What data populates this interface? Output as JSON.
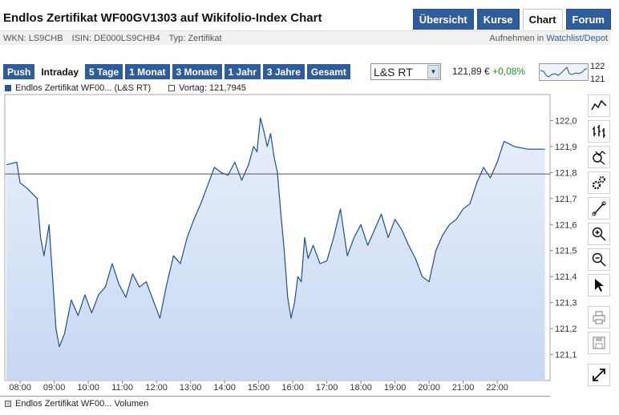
{
  "header": {
    "title": "Endlos Zertifikat WF00GV1303 auf Wikifolio-Index Chart",
    "nav": [
      "Übersicht",
      "Kurse",
      "Chart",
      "Forum"
    ],
    "nav_active": "Chart",
    "wkn": "WKN: LS9CHB",
    "isin": "ISIN: DE000LS9CHB4",
    "typ": "Typ: Zertifikat",
    "watch_prefix": "Aufnehmen in",
    "watch_link": "Watchlist/Depot"
  },
  "controls": {
    "push": "Push",
    "periods": [
      "Intraday",
      "5 Tage",
      "1 Monat",
      "3 Monate",
      "1 Jahr",
      "3 Jahre",
      "Gesamt"
    ],
    "active_period": "Intraday",
    "exchange": "L&S RT",
    "quote_price": "121,89 €",
    "quote_change": "+0,08%",
    "mini_high": "122",
    "mini_low": "121"
  },
  "legend": {
    "series": "Endlos Zertifikat WF00... (L&S RT)",
    "previous": "Vortag: 121,7945"
  },
  "footer": {
    "volume_label": "Endlos Zertifikat WF00... Volumen"
  },
  "tools": [
    "line-chart-icon",
    "ohlc-chart-icon",
    "indicator-search-icon",
    "settings-gears-icon",
    "draw-line-icon",
    "zoom-in-icon",
    "zoom-out-icon",
    "pointer-icon",
    "print-icon",
    "save-icon",
    "fullscreen-icon"
  ],
  "colors": {
    "accent": "#2f5d9c",
    "line": "#1f4f8f",
    "area_top": "#e9f0fb",
    "area_bottom": "#c7d8f2",
    "change_positive": "#1a9a1a"
  },
  "chart_data": {
    "type": "area",
    "x_unit": "hour (decimal, CET)",
    "xlim": [
      7.55,
      23.55
    ],
    "ylim": [
      121.0,
      122.1
    ],
    "yticks": [
      "121,1",
      "121,2",
      "121,3",
      "121,4",
      "121,5",
      "121,6",
      "121,7",
      "121,8",
      "121,9",
      "122,0"
    ],
    "ytick_values": [
      121.1,
      121.2,
      121.3,
      121.4,
      121.5,
      121.6,
      121.7,
      121.8,
      121.9,
      122.0
    ],
    "xticks": [
      "08:00",
      "09:00",
      "10:00",
      "11:00",
      "12:00",
      "13:00",
      "14:00",
      "15:00",
      "16:00",
      "17:00",
      "18:00",
      "19:00",
      "20:00",
      "21:00",
      "22:00"
    ],
    "xtick_values": [
      8,
      9,
      10,
      11,
      12,
      13,
      14,
      15,
      16,
      17,
      18,
      19,
      20,
      21,
      22
    ],
    "reference_line": 121.7945,
    "grid": false,
    "series": [
      {
        "x": [
          7.6,
          7.9,
          8.0,
          8.2,
          8.35,
          8.5,
          8.6,
          8.7,
          8.85,
          8.95,
          9.05,
          9.15,
          9.3,
          9.5,
          9.7,
          9.9,
          10.1,
          10.3,
          10.5,
          10.7,
          10.9,
          11.1,
          11.3,
          11.5,
          11.7,
          11.9,
          12.1,
          12.3,
          12.5,
          12.7,
          12.9,
          13.1,
          13.3,
          13.5,
          13.7,
          13.9,
          14.1,
          14.3,
          14.5,
          14.7,
          14.85,
          14.95,
          15.05,
          15.15,
          15.25,
          15.35,
          15.45,
          15.55,
          15.65,
          15.75,
          15.85,
          15.95,
          16.05,
          16.15,
          16.25,
          16.35,
          16.45,
          16.6,
          16.8,
          17.0,
          17.2,
          17.4,
          17.6,
          17.8,
          18.0,
          18.2,
          18.4,
          18.6,
          18.8,
          19.0,
          19.2,
          19.4,
          19.6,
          19.8,
          20.0,
          20.2,
          20.4,
          20.6,
          20.8,
          21.0,
          21.2,
          21.4,
          21.6,
          21.7,
          21.8,
          22.0,
          22.2,
          22.5,
          22.9,
          23.4
        ],
        "y": [
          121.83,
          121.84,
          121.76,
          121.74,
          121.72,
          121.7,
          121.55,
          121.48,
          121.6,
          121.4,
          121.2,
          121.13,
          121.18,
          121.31,
          121.25,
          121.33,
          121.26,
          121.33,
          121.36,
          121.45,
          121.37,
          121.32,
          121.41,
          121.36,
          121.38,
          121.31,
          121.24,
          121.37,
          121.48,
          121.45,
          121.55,
          121.62,
          121.68,
          121.75,
          121.82,
          121.8,
          121.79,
          121.84,
          121.77,
          121.83,
          121.9,
          121.88,
          122.01,
          121.96,
          121.9,
          121.95,
          121.86,
          121.8,
          121.64,
          121.5,
          121.32,
          121.24,
          121.3,
          121.4,
          121.38,
          121.55,
          121.47,
          121.52,
          121.45,
          121.46,
          121.55,
          121.66,
          121.48,
          121.55,
          121.6,
          121.52,
          121.58,
          121.64,
          121.55,
          121.62,
          121.58,
          121.52,
          121.47,
          121.4,
          121.38,
          121.5,
          121.56,
          121.6,
          121.62,
          121.66,
          121.68,
          121.76,
          121.82,
          121.8,
          121.78,
          121.84,
          121.92,
          121.9,
          121.89,
          121.89
        ]
      }
    ],
    "volume_series": "Endlos Zertifikat WF00... Volumen"
  }
}
